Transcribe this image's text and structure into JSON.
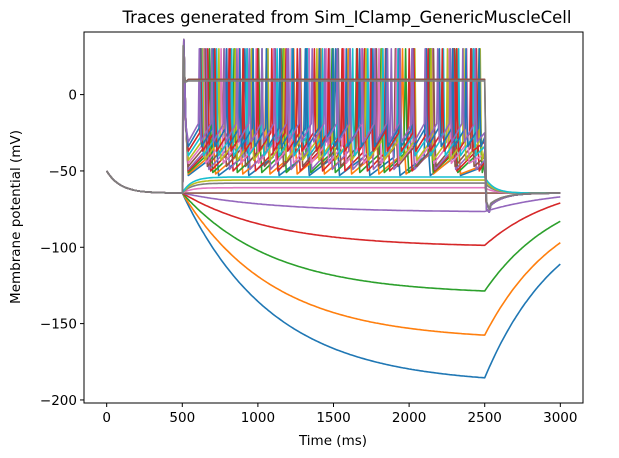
{
  "chart_data": {
    "type": "line",
    "title": "Traces generated from Sim_IClamp_GenericMuscleCell",
    "xlabel": "Time (ms)",
    "ylabel": "Membrane potential (mV)",
    "xlim": [
      -150,
      3150
    ],
    "ylim": [
      -202,
      41
    ],
    "xticks": [
      0,
      500,
      1000,
      1500,
      2000,
      2500,
      3000
    ],
    "yticks": [
      -200,
      -150,
      -100,
      -50,
      0
    ],
    "grid": false,
    "legend": "none",
    "stim_window_ms": [
      500,
      2500
    ],
    "resting_potential_mV": -64.5,
    "colors": [
      "#1f77b4",
      "#ff7f0e",
      "#2ca02c",
      "#d62728",
      "#9467bd",
      "#8c564b",
      "#e377c2",
      "#7f7f7f",
      "#bcbd22",
      "#17becf"
    ],
    "hyperpolarizing_series": [
      {
        "steady_mV": -190,
        "end_mV": -111,
        "color": "#1f77b4"
      },
      {
        "steady_mV": -161,
        "end_mV": -97,
        "color": "#ff7f0e"
      },
      {
        "steady_mV": -131,
        "end_mV": -83,
        "color": "#2ca02c"
      },
      {
        "steady_mV": -100,
        "end_mV": -71,
        "color": "#d62728"
      },
      {
        "steady_mV": -77,
        "end_mV": -67,
        "color": "#9467bd"
      },
      {
        "steady_mV": -64.5,
        "end_mV": -64.5,
        "color": "#8c564b"
      }
    ],
    "subthreshold_series": [
      {
        "steady_mV": -61,
        "color": "#e377c2"
      },
      {
        "steady_mV": -58,
        "color": "#7f7f7f"
      },
      {
        "steady_mV": -56,
        "color": "#bcbd22"
      },
      {
        "steady_mV": -54,
        "color": "#17becf"
      }
    ],
    "spiking_series": [
      {
        "period_ms": 200,
        "trough_mV": -53,
        "peak_mV": 30,
        "color": "#1f77b4"
      },
      {
        "period_ms": 180,
        "trough_mV": -52,
        "peak_mV": 30,
        "color": "#ff7f0e"
      },
      {
        "period_ms": 162,
        "trough_mV": -51,
        "peak_mV": 30,
        "color": "#2ca02c"
      },
      {
        "period_ms": 148,
        "trough_mV": -50,
        "peak_mV": 30,
        "color": "#d62728"
      },
      {
        "period_ms": 136,
        "trough_mV": -49,
        "peak_mV": 30,
        "color": "#9467bd"
      },
      {
        "period_ms": 126,
        "trough_mV": -47,
        "peak_mV": 30,
        "color": "#8c564b"
      },
      {
        "period_ms": 116,
        "trough_mV": -45,
        "peak_mV": 30,
        "color": "#e377c2"
      },
      {
        "period_ms": 108,
        "trough_mV": -43,
        "peak_mV": 30,
        "color": "#bcbd22"
      },
      {
        "period_ms": 100,
        "trough_mV": -40,
        "peak_mV": 30,
        "color": "#17becf"
      },
      {
        "period_ms": 94,
        "trough_mV": -37,
        "peak_mV": 30,
        "color": "#d62728"
      },
      {
        "period_ms": 88,
        "trough_mV": -34,
        "peak_mV": 30,
        "color": "#1f77b4"
      },
      {
        "period_ms": 83,
        "trough_mV": -31,
        "peak_mV": 30,
        "color": "#9467bd"
      }
    ],
    "depolarization_block_series": [
      {
        "plateau_mV": 10,
        "color": "#8c564b"
      },
      {
        "plateau_mV": 9,
        "color": "#7f7f7f"
      }
    ]
  }
}
